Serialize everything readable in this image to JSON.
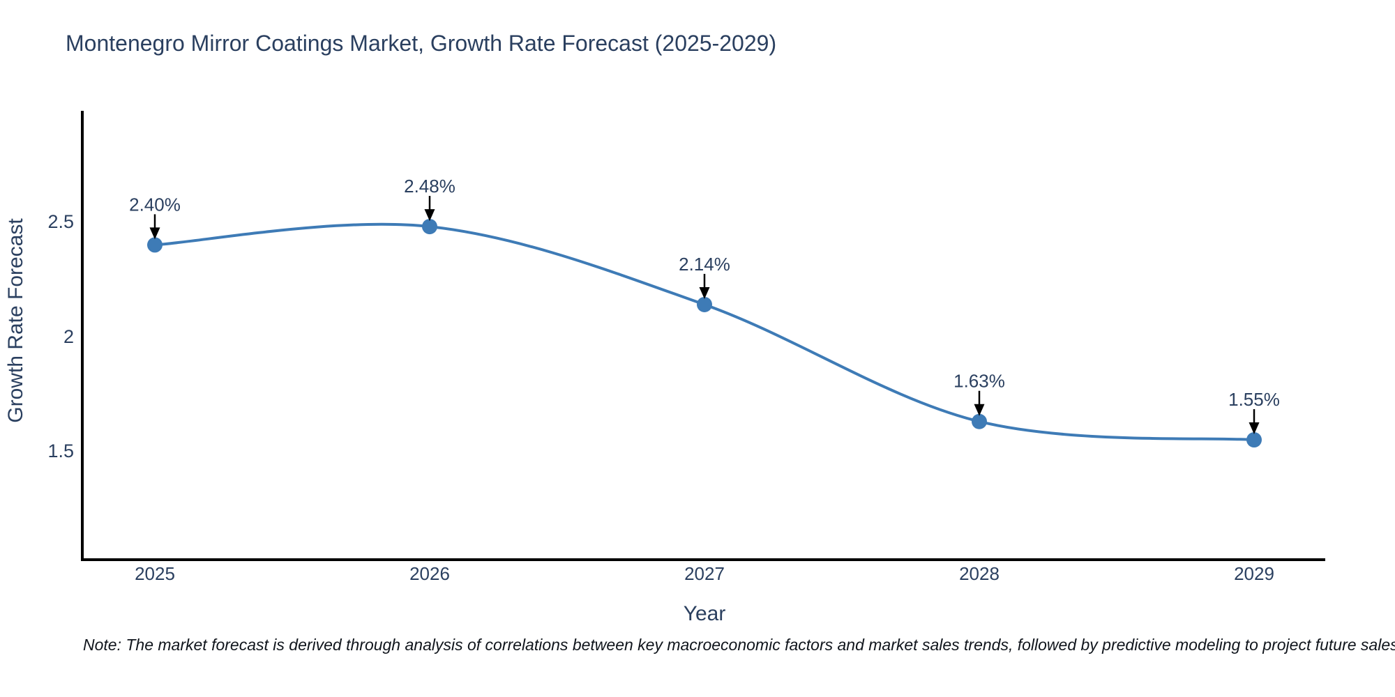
{
  "note": "Note: The market forecast is derived through analysis of correlations between key macroeconomic factors and market sales trends, followed by predictive modeling to project future sales",
  "colors": {
    "line": "#3e7bb6",
    "marker": "#3e7bb6",
    "axis": "#000000",
    "title_text": "#2a3f5f",
    "tick_text": "#2a3f5f",
    "annotation_arrow": "#000000"
  },
  "chart_data": {
    "type": "line",
    "title": "Montenegro Mirror Coatings Market, Growth Rate Forecast (2025-2029)",
    "xlabel": "Year",
    "ylabel": "Growth Rate Forecast",
    "categories": [
      "2025",
      "2026",
      "2027",
      "2028",
      "2029"
    ],
    "values": [
      2.4,
      2.48,
      2.14,
      1.63,
      1.55
    ],
    "point_labels": [
      "2.40%",
      "2.48%",
      "2.14%",
      "1.63%",
      "1.55%"
    ],
    "yticks": [
      "2.5",
      "2",
      "1.5"
    ],
    "ytick_values": [
      2.5,
      2.0,
      1.5
    ],
    "ylim": [
      1.03,
      2.98
    ],
    "line_shape": "spline",
    "grid": false,
    "legend_position": "none",
    "annotations": "black down-arrows from labels to markers"
  }
}
